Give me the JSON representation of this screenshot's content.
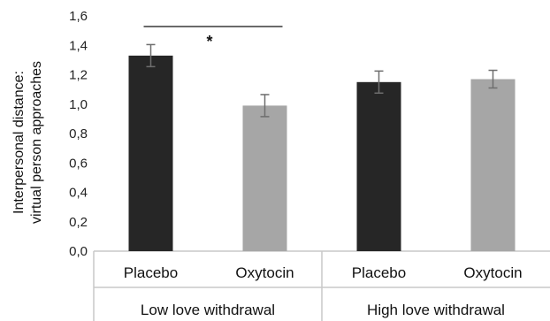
{
  "chart_data": {
    "type": "bar",
    "ylabel_lines": [
      "Interpersonal distance:",
      "virtual person approaches"
    ],
    "ylim": [
      0,
      1.6
    ],
    "yticks": [
      "0,0",
      "0,2",
      "0,4",
      "0,6",
      "0,8",
      "1,0",
      "1,2",
      "1,4",
      "1,6"
    ],
    "groups": [
      {
        "label": "Low love withdrawal",
        "bars": [
          {
            "label": "Placebo",
            "value": 1.33,
            "error": 0.075,
            "color": "#262626"
          },
          {
            "label": "Oxytocin",
            "value": 0.99,
            "error": 0.075,
            "color": "#a6a6a6"
          }
        ]
      },
      {
        "label": "High love withdrawal",
        "bars": [
          {
            "label": "Placebo",
            "value": 1.15,
            "error": 0.075,
            "color": "#262626"
          },
          {
            "label": "Oxytocin",
            "value": 1.17,
            "error": 0.06,
            "color": "#a6a6a6"
          }
        ]
      }
    ],
    "significance": {
      "group": 0,
      "from_bar": 0,
      "to_bar": 1,
      "text": "*"
    },
    "grid": false
  }
}
